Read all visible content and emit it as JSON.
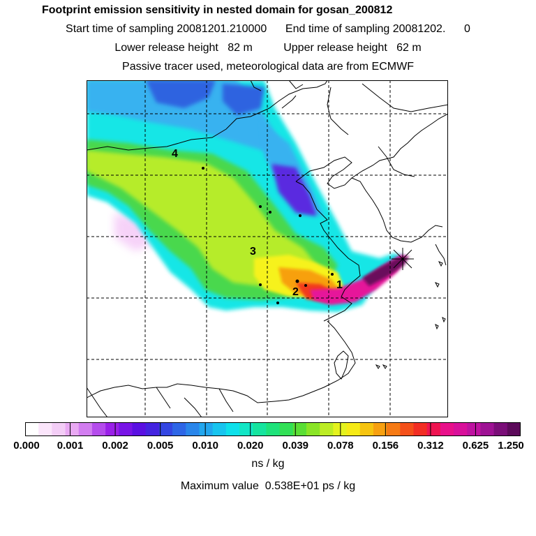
{
  "header": {
    "title": "Footprint emission sensitivity in nested domain for gosan_200812",
    "sampling": "Start time of sampling 20081201.210000      End time of sampling 20081202.      0",
    "release": "Lower release height   82 m          Upper release height   62 m",
    "note": "Passive tracer used, meteorological data are from ECMWF"
  },
  "map": {
    "region_labels": [
      "1",
      "2",
      "3",
      "4"
    ],
    "plume_colors": {
      "background": "#ffffff",
      "light_magenta": "#f3bff6",
      "cyan": "#18e6e6",
      "sky_blue": "#39b2f0",
      "blue": "#2d63e0",
      "purple_blue": "#5a2be0",
      "green": "#4ad84e",
      "yellow_green": "#b6ec2a",
      "yellow": "#f6f21e",
      "orange": "#f7a010",
      "red_orange": "#f23a1c",
      "magenta": "#e6139a",
      "dark_purple": "#6a0d5c"
    }
  },
  "legend": {
    "unit": "ns / kg",
    "ticks": [
      "0.000",
      "0.001",
      "0.002",
      "0.005",
      "0.010",
      "0.020",
      "0.039",
      "0.078",
      "0.156",
      "0.312",
      "0.625",
      "1.250"
    ],
    "colors": [
      "#ffffff",
      "#fbe5fb",
      "#f3cdf6",
      "#e9a9f3",
      "#d27df0",
      "#b54cec",
      "#9a20e8",
      "#7814e6",
      "#5a10e2",
      "#4424e0",
      "#3446e2",
      "#2e66e6",
      "#2a86ea",
      "#22a6ee",
      "#18c4ee",
      "#0ee0ea",
      "#12e6c6",
      "#16e49e",
      "#1ee27a",
      "#32e056",
      "#5ade34",
      "#8ae426",
      "#bcec24",
      "#e4f21e",
      "#f6ea16",
      "#f6c410",
      "#f7a010",
      "#f67a14",
      "#f4501a",
      "#f22e24",
      "#ee1450",
      "#e8108a",
      "#d8109a",
      "#be12a0",
      "#9e1294",
      "#7a0e78",
      "#5c0a5a"
    ]
  },
  "max_value": "Maximum value  0.538E+01 ps / kg"
}
